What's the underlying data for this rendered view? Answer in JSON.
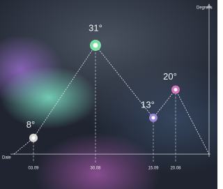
{
  "chart_data": {
    "type": "line",
    "y_axis_label": "Degrees",
    "x_axis_label": "Date",
    "categories": [
      "03.09",
      "30.08",
      "15.09",
      "20.08"
    ],
    "values": [
      8,
      31,
      13,
      20
    ],
    "value_labels": [
      "8°",
      "31°",
      "13°",
      "20°"
    ],
    "colors": [
      "#e8e8e8",
      "#7ef0a8",
      "#a48ce6",
      "#e07ac8"
    ],
    "ylim": [
      0,
      40
    ]
  }
}
